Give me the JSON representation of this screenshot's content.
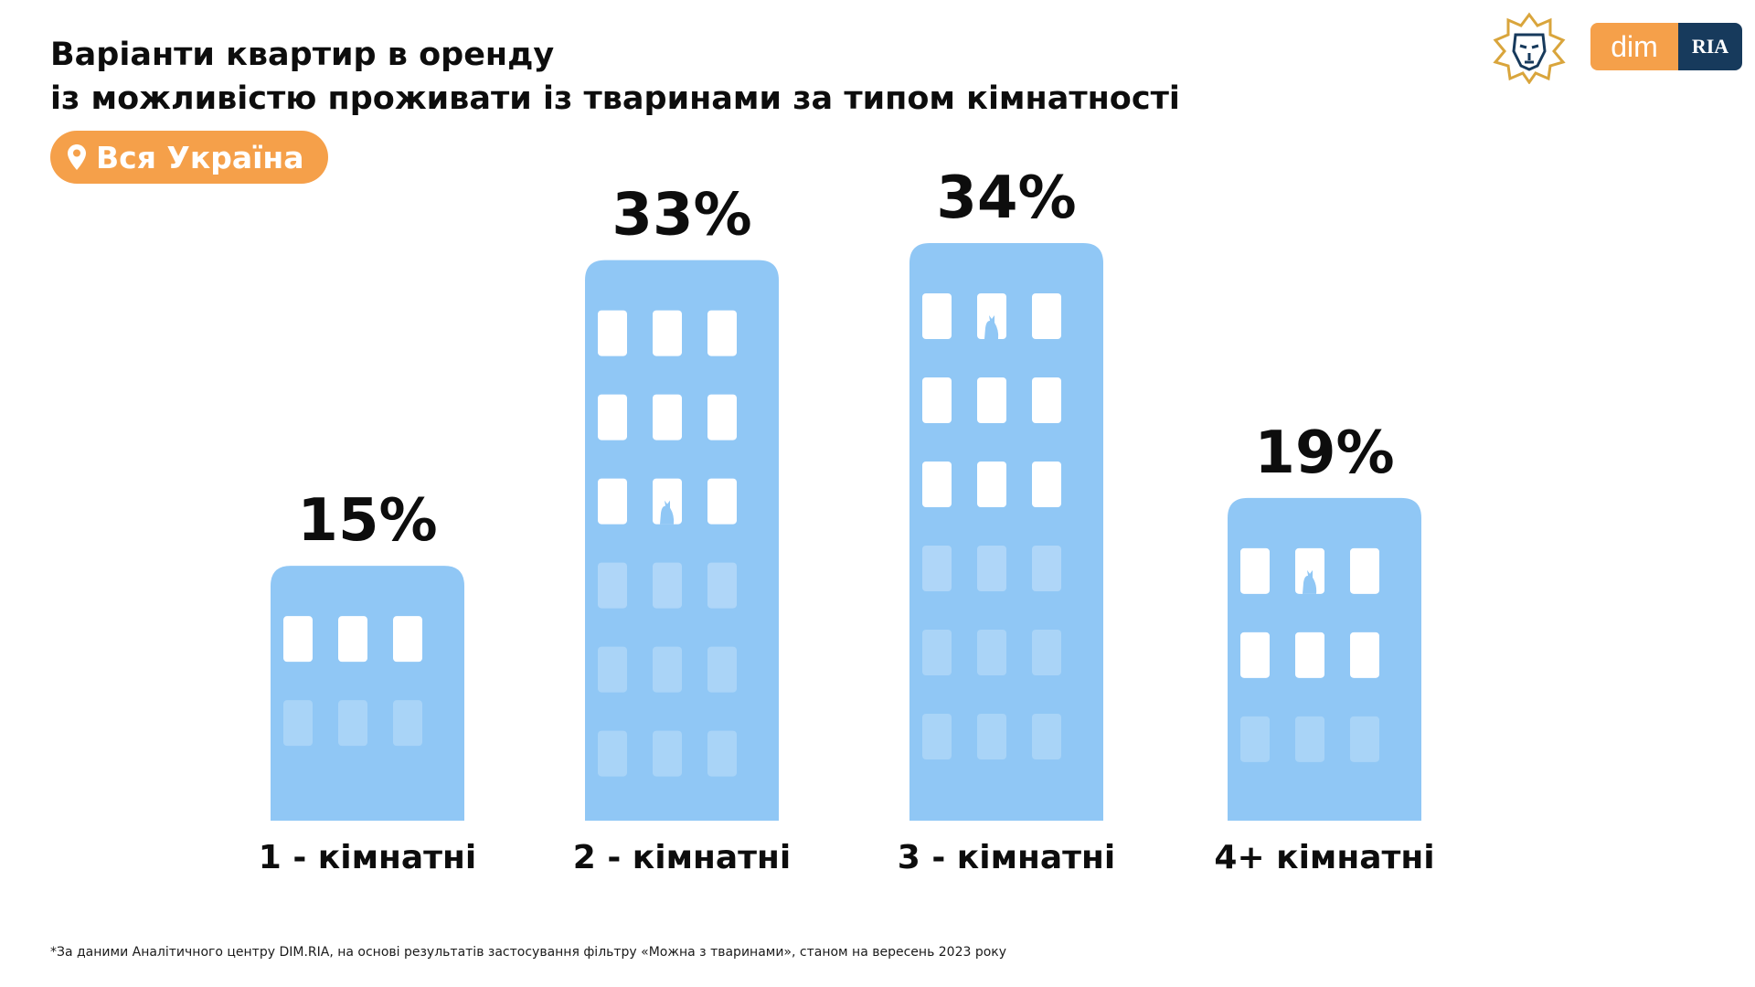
{
  "header": {
    "title_line1": "Варіанти квартир в оренду",
    "title_line2": "із можливістю проживати із тваринами за типом кімнатності"
  },
  "region_badge": {
    "label": "Вся Україна",
    "icon": "map-pin-icon"
  },
  "logos": {
    "dim_label": "dim",
    "ria_label": "RIA",
    "emblem_icon": "lion-emblem-icon"
  },
  "colors": {
    "building": "#90c7f5",
    "window_light": "#ffffff",
    "window_faded": "#e4f1fd",
    "badge": "#f5a04a",
    "cat": "#90c7f5"
  },
  "chart_data": {
    "type": "bar",
    "categories": [
      "1 - кімнатні",
      "2 - кімнатні",
      "3 - кімнатні",
      "4+ кімнатні"
    ],
    "values": [
      15,
      33,
      34,
      19
    ],
    "value_labels": [
      "15%",
      "33%",
      "34%",
      "19%"
    ],
    "unit": "%",
    "title": "Варіанти квартир в оренду із можливістю проживати із тваринами за типом кімнатності",
    "xlabel": "",
    "ylabel": "",
    "ylim": [
      0,
      34
    ],
    "grid": false,
    "legend": "none"
  },
  "footnote": "*За даними Аналітичного центру DIM.RIA, на основі результатів застосування фільтру «Можна з тваринами», станом на вересень 2023 року"
}
